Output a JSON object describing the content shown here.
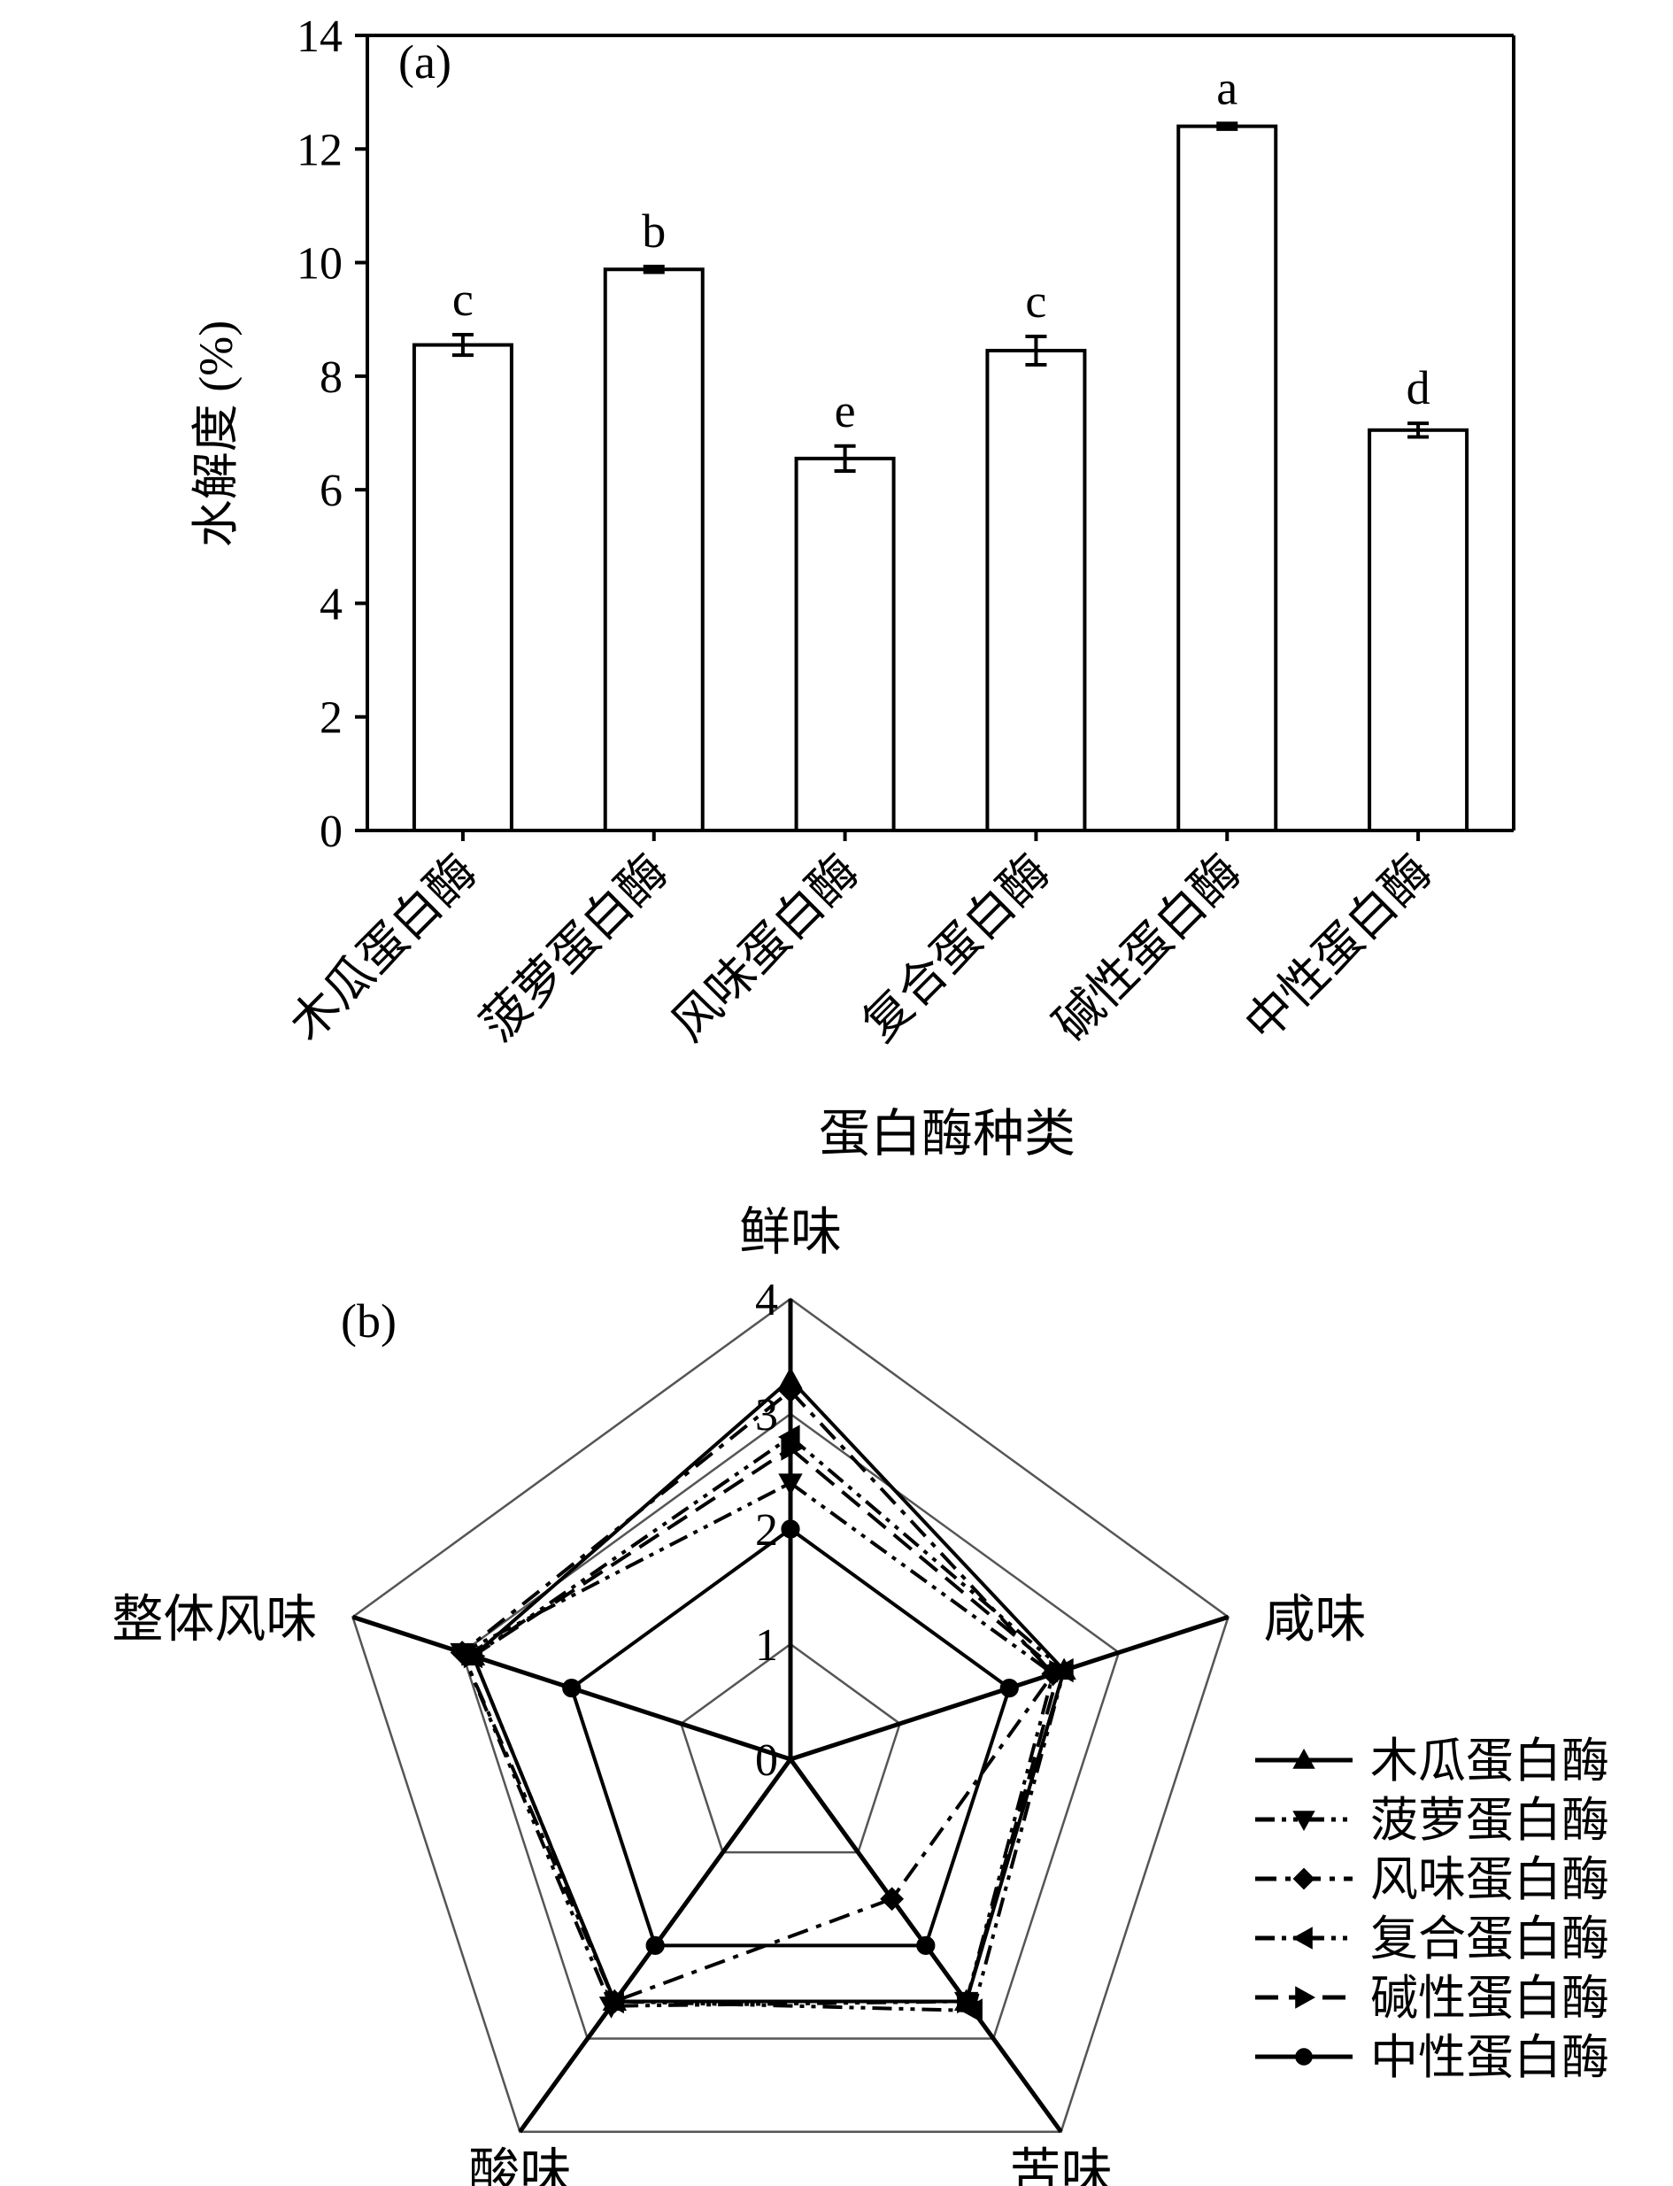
{
  "chart_data": [
    {
      "type": "bar",
      "panel_label": "(a)",
      "xlabel": "蛋白酶种类",
      "ylabel": "水解度 (%)",
      "ylim": [
        0,
        14
      ],
      "yticks": [
        "0",
        "2",
        "4",
        "6",
        "8",
        "10",
        "12",
        "14"
      ],
      "categories": [
        "木瓜蛋白酶",
        "菠萝蛋白酶",
        "风味蛋白酶",
        "复合蛋白酶",
        "碱性蛋白酶",
        "中性蛋白酶"
      ],
      "values": [
        8.55,
        9.88,
        6.55,
        8.45,
        12.4,
        7.05
      ],
      "errors": [
        0.18,
        0.05,
        0.22,
        0.25,
        0.05,
        0.12
      ],
      "significance_letters": [
        "c",
        "b",
        "e",
        "c",
        "a",
        "d"
      ],
      "grid": false
    },
    {
      "type": "radar",
      "panel_label": "(b)",
      "axes": [
        "鲜味",
        "咸味",
        "苦味",
        "酸味",
        "整体风味"
      ],
      "rlim": [
        0,
        4
      ],
      "rticks": [
        "0",
        "1",
        "2",
        "3",
        "4"
      ],
      "legend_position": "right",
      "series": [
        {
          "name": "木瓜蛋白酶",
          "values": [
            3.3,
            2.5,
            2.6,
            2.6,
            2.9
          ],
          "marker": "triangle-up",
          "dash": "solid"
        },
        {
          "name": "菠萝蛋白酶",
          "values": [
            2.4,
            2.4,
            2.6,
            2.65,
            3.0
          ],
          "marker": "triangle-down",
          "dash": "dash-dot-dot"
        },
        {
          "name": "风味蛋白酶",
          "values": [
            3.2,
            2.4,
            1.5,
            2.6,
            3.0
          ],
          "marker": "diamond",
          "dash": "dash-dot"
        },
        {
          "name": "复合蛋白酶",
          "values": [
            2.8,
            2.5,
            2.7,
            2.6,
            2.9
          ],
          "marker": "triangle-left",
          "dash": "dash-dot-dot"
        },
        {
          "name": "碱性蛋白酶",
          "values": [
            2.7,
            2.45,
            2.6,
            2.6,
            2.9
          ],
          "marker": "triangle-right",
          "dash": "dash"
        },
        {
          "name": "中性蛋白酶",
          "values": [
            2.0,
            2.0,
            2.0,
            2.0,
            2.0
          ],
          "marker": "circle",
          "dash": "solid"
        }
      ]
    }
  ]
}
